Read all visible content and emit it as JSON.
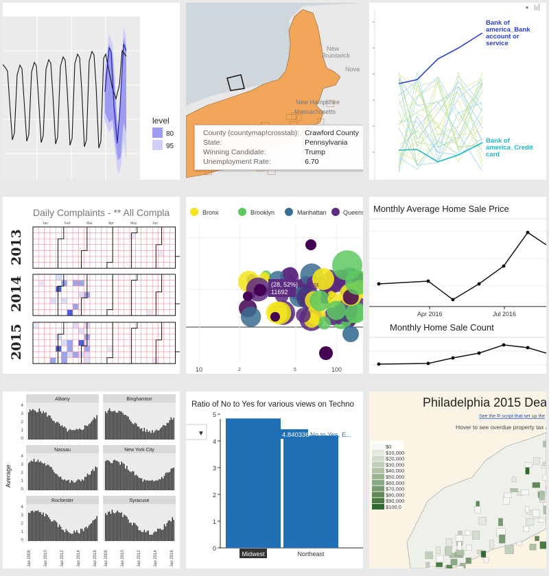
{
  "tiles": {
    "forecast": {
      "legend_title": "level",
      "legend_items": [
        "80",
        "95"
      ],
      "colors": {
        "line": "#111111",
        "forecast": "#2222aa",
        "band80": "#9c9cf0",
        "band95": "#cfcffa",
        "panel": "#ebebeb"
      }
    },
    "countymap": {
      "labels": {
        "new_brunswick_1": "New",
        "new_brunswick_2": "Brunswick",
        "nova": "Nova",
        "new_hampshire": "New Hampshire",
        "massachusetts": "Massachusetts"
      },
      "tooltip": {
        "rows": [
          {
            "key": "County (countymap!crosstab):",
            "value": "Crawford County"
          },
          {
            "key": "State:",
            "value": "Pennsylvania"
          },
          {
            "key": "Winning Candidate:",
            "value": "Trump"
          },
          {
            "key": "Unemployment Rate:",
            "value": "6.70"
          }
        ]
      },
      "colors": {
        "land": "#f2a65a",
        "water": "#cfd6dc",
        "other": "#e8e8e8"
      }
    },
    "complaints_lines": {
      "labels": {
        "bank_account": "Bank of america_Bank account or service",
        "credit_card": "Bank of america_Credit card"
      },
      "bank_account_lines": [
        "Bank of",
        "america_Bank",
        "account or",
        "service"
      ],
      "credit_card_lines": [
        "Bank of",
        "america_Credit",
        "card"
      ],
      "colors": {
        "bank_account": "#2b3fd6",
        "credit_card": "#17b8c4"
      }
    },
    "calendar": {
      "title": "Daily Complaints - ** All Compla",
      "years": [
        "2013",
        "2014",
        "2015"
      ],
      "months": [
        "Jan",
        "Feb",
        "Mar",
        "Apr",
        "May",
        "Jun"
      ]
    },
    "bubbles": {
      "legend": [
        {
          "label": "Bronx",
          "color": "#f3e51e"
        },
        {
          "label": "Brooklyn",
          "color": "#5ec962"
        },
        {
          "label": "Manhattan",
          "color": "#3b6e92"
        },
        {
          "label": "Queens",
          "color": "#5c2a80"
        }
      ],
      "tooltip_line1": "(28, 52%)",
      "tooltip_line2": "11692",
      "tooltip_series": "Queens",
      "x_ticks": [
        "10",
        "2",
        "5",
        "100"
      ]
    },
    "home_sales": {
      "title1": "Monthly Average Home Sale Price",
      "title2": "Monthly Home Sale Count",
      "x_ticks": [
        "Apr 2016",
        "Jul 2016"
      ]
    },
    "averages": {
      "ylabel": "Average",
      "panels": [
        "Albany",
        "Binghamton",
        "Nassau",
        "New York City",
        "Rochester",
        "Syracuse"
      ],
      "y_ticks": [
        "4",
        "3",
        "2",
        "1",
        "0"
      ],
      "x_ticks": [
        "Jan 2008",
        "Jan 2010",
        "Jan 2012",
        "Jan 2014",
        "Jan 2016"
      ]
    },
    "ratio": {
      "title": "Ratio of No to Yes for various views on Techno",
      "dropdown_icon": "▼",
      "y_ticks": [
        "5",
        "4",
        "3",
        "2",
        "1",
        "0"
      ],
      "bars": [
        {
          "category": "Midwest",
          "value": 4.840336
        },
        {
          "category": "Northeast",
          "value": 4.2
        }
      ],
      "hover_value": "4.840336",
      "hover_label": "No to Yes, E...",
      "color": "#1f6fb5"
    },
    "philly": {
      "title": "Philadelphia 2015 Deadl",
      "link": "See the R script that set up the",
      "hover_text": "Hover to see overdue property tax and otl",
      "legend": [
        "$0",
        "$10,000",
        "$20,000",
        "$30,000",
        "$40,000",
        "$50,000",
        "$60,000",
        "$70,000",
        "$80,000",
        "$90,000",
        "$100,0"
      ],
      "legend_colors": [
        "#f6f7f4",
        "#e4e9e0",
        "#d3dccd",
        "#c1cfba",
        "#afc2a7",
        "#9db594",
        "#8aa881",
        "#779b6e",
        "#5f8a57",
        "#4a7a44",
        "#2f6a2e"
      ]
    }
  }
}
